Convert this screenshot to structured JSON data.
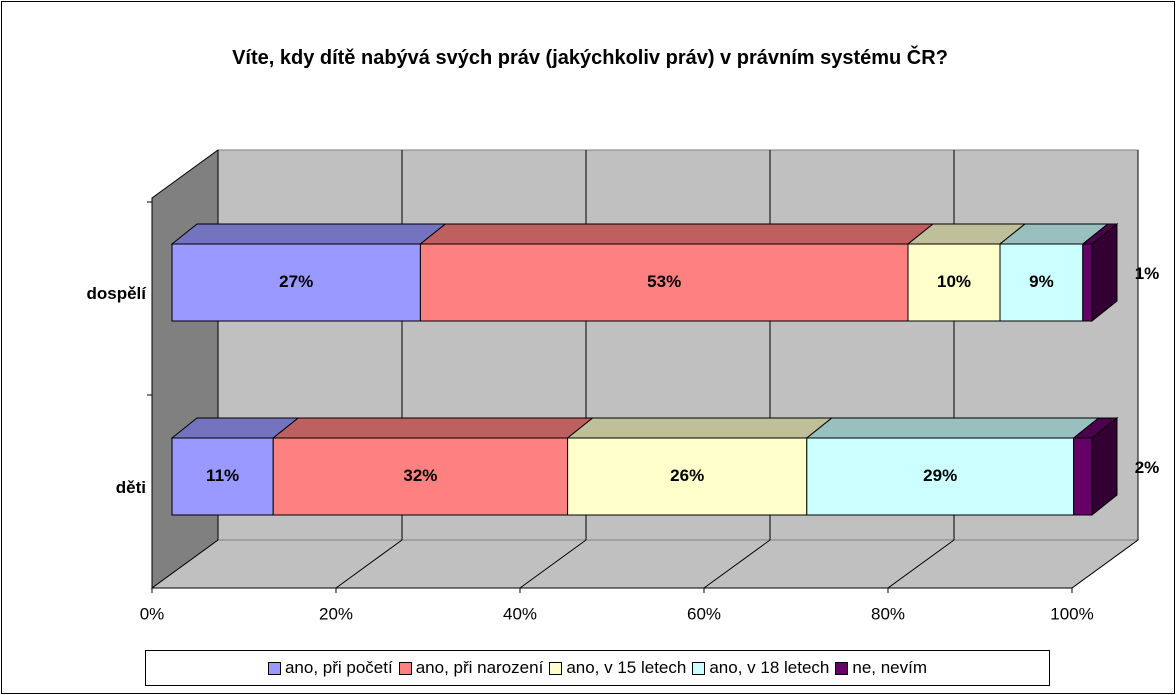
{
  "chart_data": {
    "type": "bar3d_stacked_horizontal",
    "title": "Víte, kdy dítě nabývá svých práv (jakýchkoliv práv) v právním systému ČR?",
    "categories": [
      "dospělí",
      "děti"
    ],
    "series": [
      {
        "name": "ano, při početí",
        "color": "#9999ff",
        "values": [
          27,
          11
        ],
        "value_labels": [
          "27%",
          "11%"
        ]
      },
      {
        "name": "ano, při narození",
        "color": "#ff8080",
        "values": [
          53,
          32
        ],
        "value_labels": [
          "53%",
          "32%"
        ]
      },
      {
        "name": "ano, v 15 letech",
        "color": "#ffffcc",
        "values": [
          10,
          26
        ],
        "value_labels": [
          "10%",
          "26%"
        ]
      },
      {
        "name": "ano, v 18 letech",
        "color": "#ccffff",
        "values": [
          9,
          29
        ],
        "value_labels": [
          "9%",
          "29%"
        ]
      },
      {
        "name": "ne, nevím",
        "color": "#660066",
        "values": [
          1,
          2
        ],
        "value_labels": [
          "1%",
          "2%"
        ]
      }
    ],
    "xlim": [
      0,
      100
    ],
    "xticks": [
      {
        "value": 0,
        "label": "0%"
      },
      {
        "value": 20,
        "label": "20%"
      },
      {
        "value": 40,
        "label": "40%"
      },
      {
        "value": 60,
        "label": "60%"
      },
      {
        "value": 80,
        "label": "80%"
      },
      {
        "value": 100,
        "label": "100%"
      }
    ],
    "grid": true,
    "legend": "bottom"
  }
}
